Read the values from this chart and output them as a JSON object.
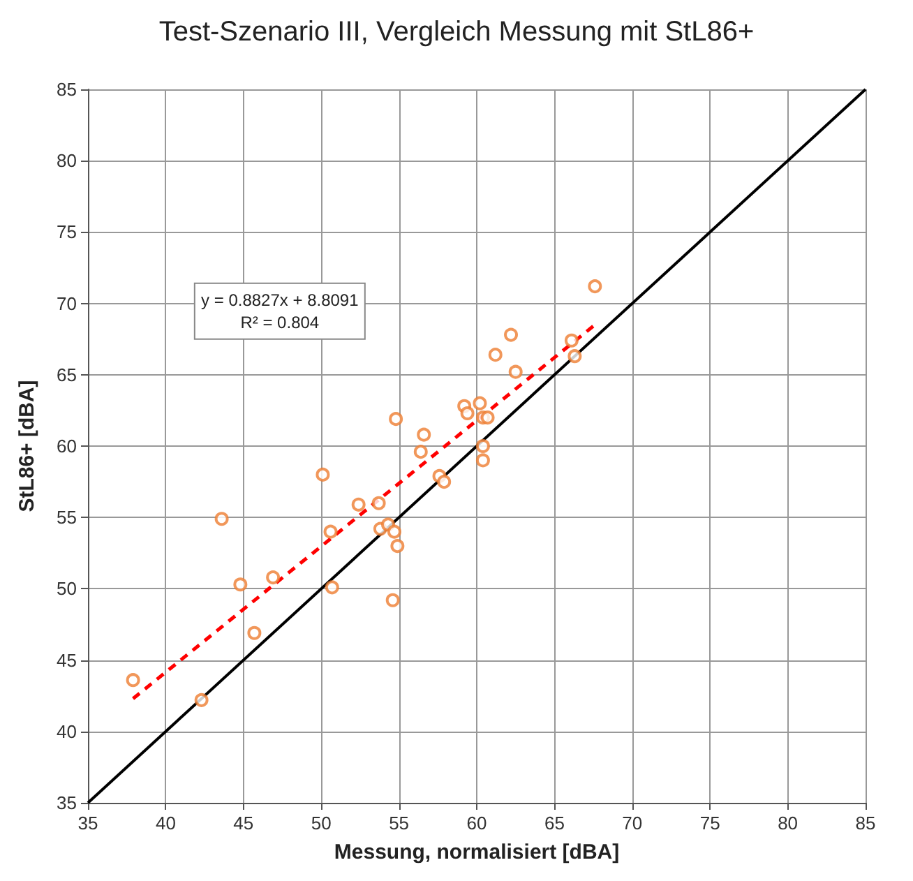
{
  "chart_data": {
    "type": "scatter",
    "title": "Test-Szenario III, Vergleich Messung mit StL86+",
    "xlabel": "Messung, normalisiert [dBA]",
    "ylabel": "StL86+ [dBA]",
    "xlim": [
      35,
      85
    ],
    "ylim": [
      35,
      85
    ],
    "xticks": [
      35,
      40,
      45,
      50,
      55,
      60,
      65,
      70,
      75,
      80,
      85
    ],
    "yticks": [
      35,
      40,
      45,
      50,
      55,
      60,
      65,
      70,
      75,
      80,
      85
    ],
    "grid": true,
    "marker": "circle",
    "annotations": [
      "y = 0.8827x + 8.8091",
      "R² = 0.804"
    ],
    "series": [
      {
        "color": "#ed7d31",
        "x": [
          37.9,
          42.3,
          43.6,
          44.8,
          45.7,
          46.9,
          50.1,
          50.6,
          50.7,
          52.4,
          53.7,
          53.8,
          54.3,
          54.7,
          54.6,
          54.8,
          54.9,
          56.4,
          56.6,
          57.6,
          57.9,
          59.2,
          59.4,
          60.2,
          60.4,
          60.4,
          60.4,
          60.7,
          61.2,
          62.2,
          62.5,
          66.1,
          66.3,
          67.6
        ],
        "values": [
          43.6,
          42.2,
          54.9,
          50.3,
          46.9,
          50.8,
          58.0,
          54.0,
          50.1,
          55.9,
          56.0,
          54.2,
          54.5,
          54.0,
          49.2,
          61.9,
          53.0,
          59.6,
          60.8,
          57.9,
          57.5,
          62.8,
          62.3,
          63.0,
          62.0,
          60.0,
          59.0,
          62.0,
          66.4,
          67.8,
          65.2,
          67.4,
          66.3,
          71.2
        ]
      },
      {
        "type": "line",
        "color": "#ff0000",
        "line_style": "dashed",
        "marker": "none",
        "x": [
          37.9,
          67.6
        ],
        "values": [
          42.3,
          68.5
        ]
      },
      {
        "type": "line",
        "color": "#000000",
        "line_style": "solid",
        "marker": "none",
        "x": [
          35,
          85
        ],
        "values": [
          35,
          85
        ]
      }
    ]
  }
}
